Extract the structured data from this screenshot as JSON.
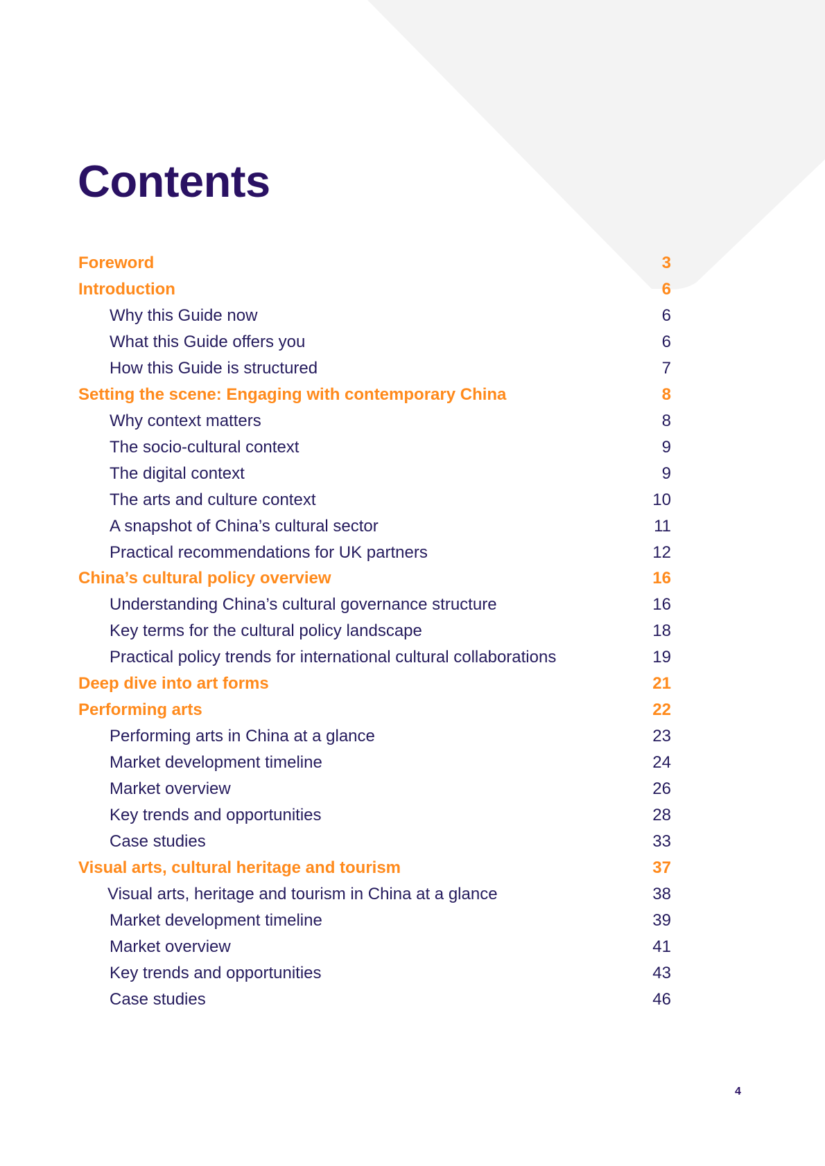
{
  "document": {
    "title": "Contents",
    "page_number": "4",
    "colors": {
      "title": "#2a1163",
      "section": "#ff8a1c",
      "subsection": "#241a5c",
      "background_shape": "#f3f3f3"
    }
  },
  "toc": {
    "entries": [
      {
        "label": "Foreword",
        "page": "3",
        "level": "section"
      },
      {
        "label": "Introduction",
        "page": "6",
        "level": "section"
      },
      {
        "label": "Why this Guide now",
        "page": "6",
        "level": "sub"
      },
      {
        "label": "What this Guide offers you",
        "page": "6",
        "level": "sub"
      },
      {
        "label": "How this Guide is structured",
        "page": "7",
        "level": "sub"
      },
      {
        "label": "Setting the scene: Engaging with contemporary China",
        "page": "8",
        "level": "section"
      },
      {
        "label": "Why context matters",
        "page": "8",
        "level": "sub"
      },
      {
        "label": "The socio-cultural context",
        "page": "9",
        "level": "sub"
      },
      {
        "label": "The digital context",
        "page": "9",
        "level": "sub"
      },
      {
        "label": "The arts and culture context",
        "page": "10",
        "level": "sub"
      },
      {
        "label": "A snapshot of China’s cultural sector",
        "page": "11",
        "level": "sub"
      },
      {
        "label": "Practical recommendations for UK partners",
        "page": "12",
        "level": "sub"
      },
      {
        "label": "China’s cultural policy overview",
        "page": "16",
        "level": "section"
      },
      {
        "label": "Understanding China’s cultural governance structure",
        "page": "16",
        "level": "sub"
      },
      {
        "label": "Key terms for the cultural policy landscape",
        "page": "18",
        "level": "sub"
      },
      {
        "label": "Practical policy trends for international cultural collaborations",
        "page": "19",
        "level": "sub"
      },
      {
        "label": "Deep dive into art forms",
        "page": "21",
        "level": "section"
      },
      {
        "label": "Performing arts",
        "page": "22",
        "level": "section"
      },
      {
        "label": "Performing arts in China at a glance",
        "page": "23",
        "level": "sub"
      },
      {
        "label": "Market development timeline",
        "page": "24",
        "level": "sub"
      },
      {
        "label": "Market overview",
        "page": "26",
        "level": "sub"
      },
      {
        "label": "Key trends and opportunities",
        "page": "28",
        "level": "sub"
      },
      {
        "label": "Case studies",
        "page": "33",
        "level": "sub"
      },
      {
        "label": "Visual arts, cultural heritage and tourism",
        "page": "37",
        "level": "section"
      },
      {
        "label": "Visual arts, heritage and tourism in China at a glance",
        "page": "38",
        "level": "sub"
      },
      {
        "label": "Market development timeline",
        "page": "39",
        "level": "sub"
      },
      {
        "label": "Market overview",
        "page": "41",
        "level": "sub"
      },
      {
        "label": "Key trends and opportunities",
        "page": "43",
        "level": "sub"
      },
      {
        "label": "Case studies",
        "page": "46",
        "level": "sub"
      }
    ]
  }
}
